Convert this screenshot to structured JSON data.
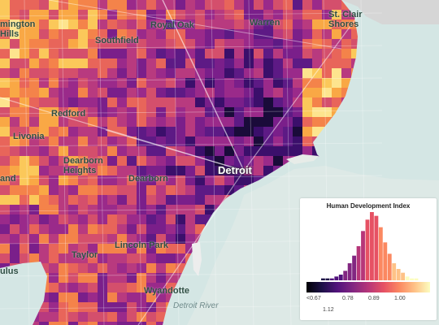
{
  "map": {
    "places": [
      {
        "id": "farmington-hills",
        "lines": [
          "mington",
          "Hills"
        ]
      },
      {
        "id": "southfield",
        "lines": [
          "Southfield"
        ]
      },
      {
        "id": "royal-oak",
        "lines": [
          "Royal Oak"
        ]
      },
      {
        "id": "warren",
        "lines": [
          "Warren"
        ]
      },
      {
        "id": "st-clair-shores",
        "lines": [
          "St. Clair",
          "Shores"
        ]
      },
      {
        "id": "redford",
        "lines": [
          "Redford"
        ]
      },
      {
        "id": "livonia",
        "lines": [
          "Livonia"
        ]
      },
      {
        "id": "dearborn-heights",
        "lines": [
          "Dearborn",
          "Heights"
        ]
      },
      {
        "id": "dearborn",
        "lines": [
          "Dearborn"
        ]
      },
      {
        "id": "westland",
        "lines": [
          "and"
        ]
      },
      {
        "id": "detroit",
        "lines": [
          "Detroit"
        ]
      },
      {
        "id": "taylor",
        "lines": [
          "Taylor"
        ]
      },
      {
        "id": "lincoln-park",
        "lines": [
          "Lincoln Park"
        ]
      },
      {
        "id": "wyandotte",
        "lines": [
          "Wyandotte"
        ]
      },
      {
        "id": "romulus",
        "lines": [
          "ulus"
        ]
      }
    ],
    "water_labels": [
      {
        "id": "detroit-river",
        "text": "Detroit River"
      }
    ],
    "colors": {
      "land": "#d6d6d6",
      "water": "#d4e6e4",
      "roads": "#ffffff"
    },
    "choropleth_palette": [
      "#1a0b3a",
      "#3b0f6b",
      "#5d1a85",
      "#7a1f8a",
      "#9a2a8a",
      "#b83a7f",
      "#d44f6c",
      "#e8655a",
      "#f4834a",
      "#f9a845",
      "#fbc85a",
      "#fde48e"
    ]
  },
  "legend": {
    "title": "Human Development Index",
    "tick_labels": [
      "<0.67",
      "0.78",
      "0.89",
      "1.00",
      "1.12"
    ],
    "histogram": [
      1,
      1,
      1,
      2,
      3,
      5,
      9,
      13,
      18,
      26,
      32,
      36,
      34,
      28,
      20,
      14,
      9,
      6,
      4,
      2,
      1,
      1
    ],
    "gradient_stops": [
      "#000004",
      "#1d1147",
      "#51127c",
      "#822681",
      "#b63679",
      "#e65164",
      "#fb8861",
      "#fec287",
      "#fcfdbf"
    ]
  }
}
